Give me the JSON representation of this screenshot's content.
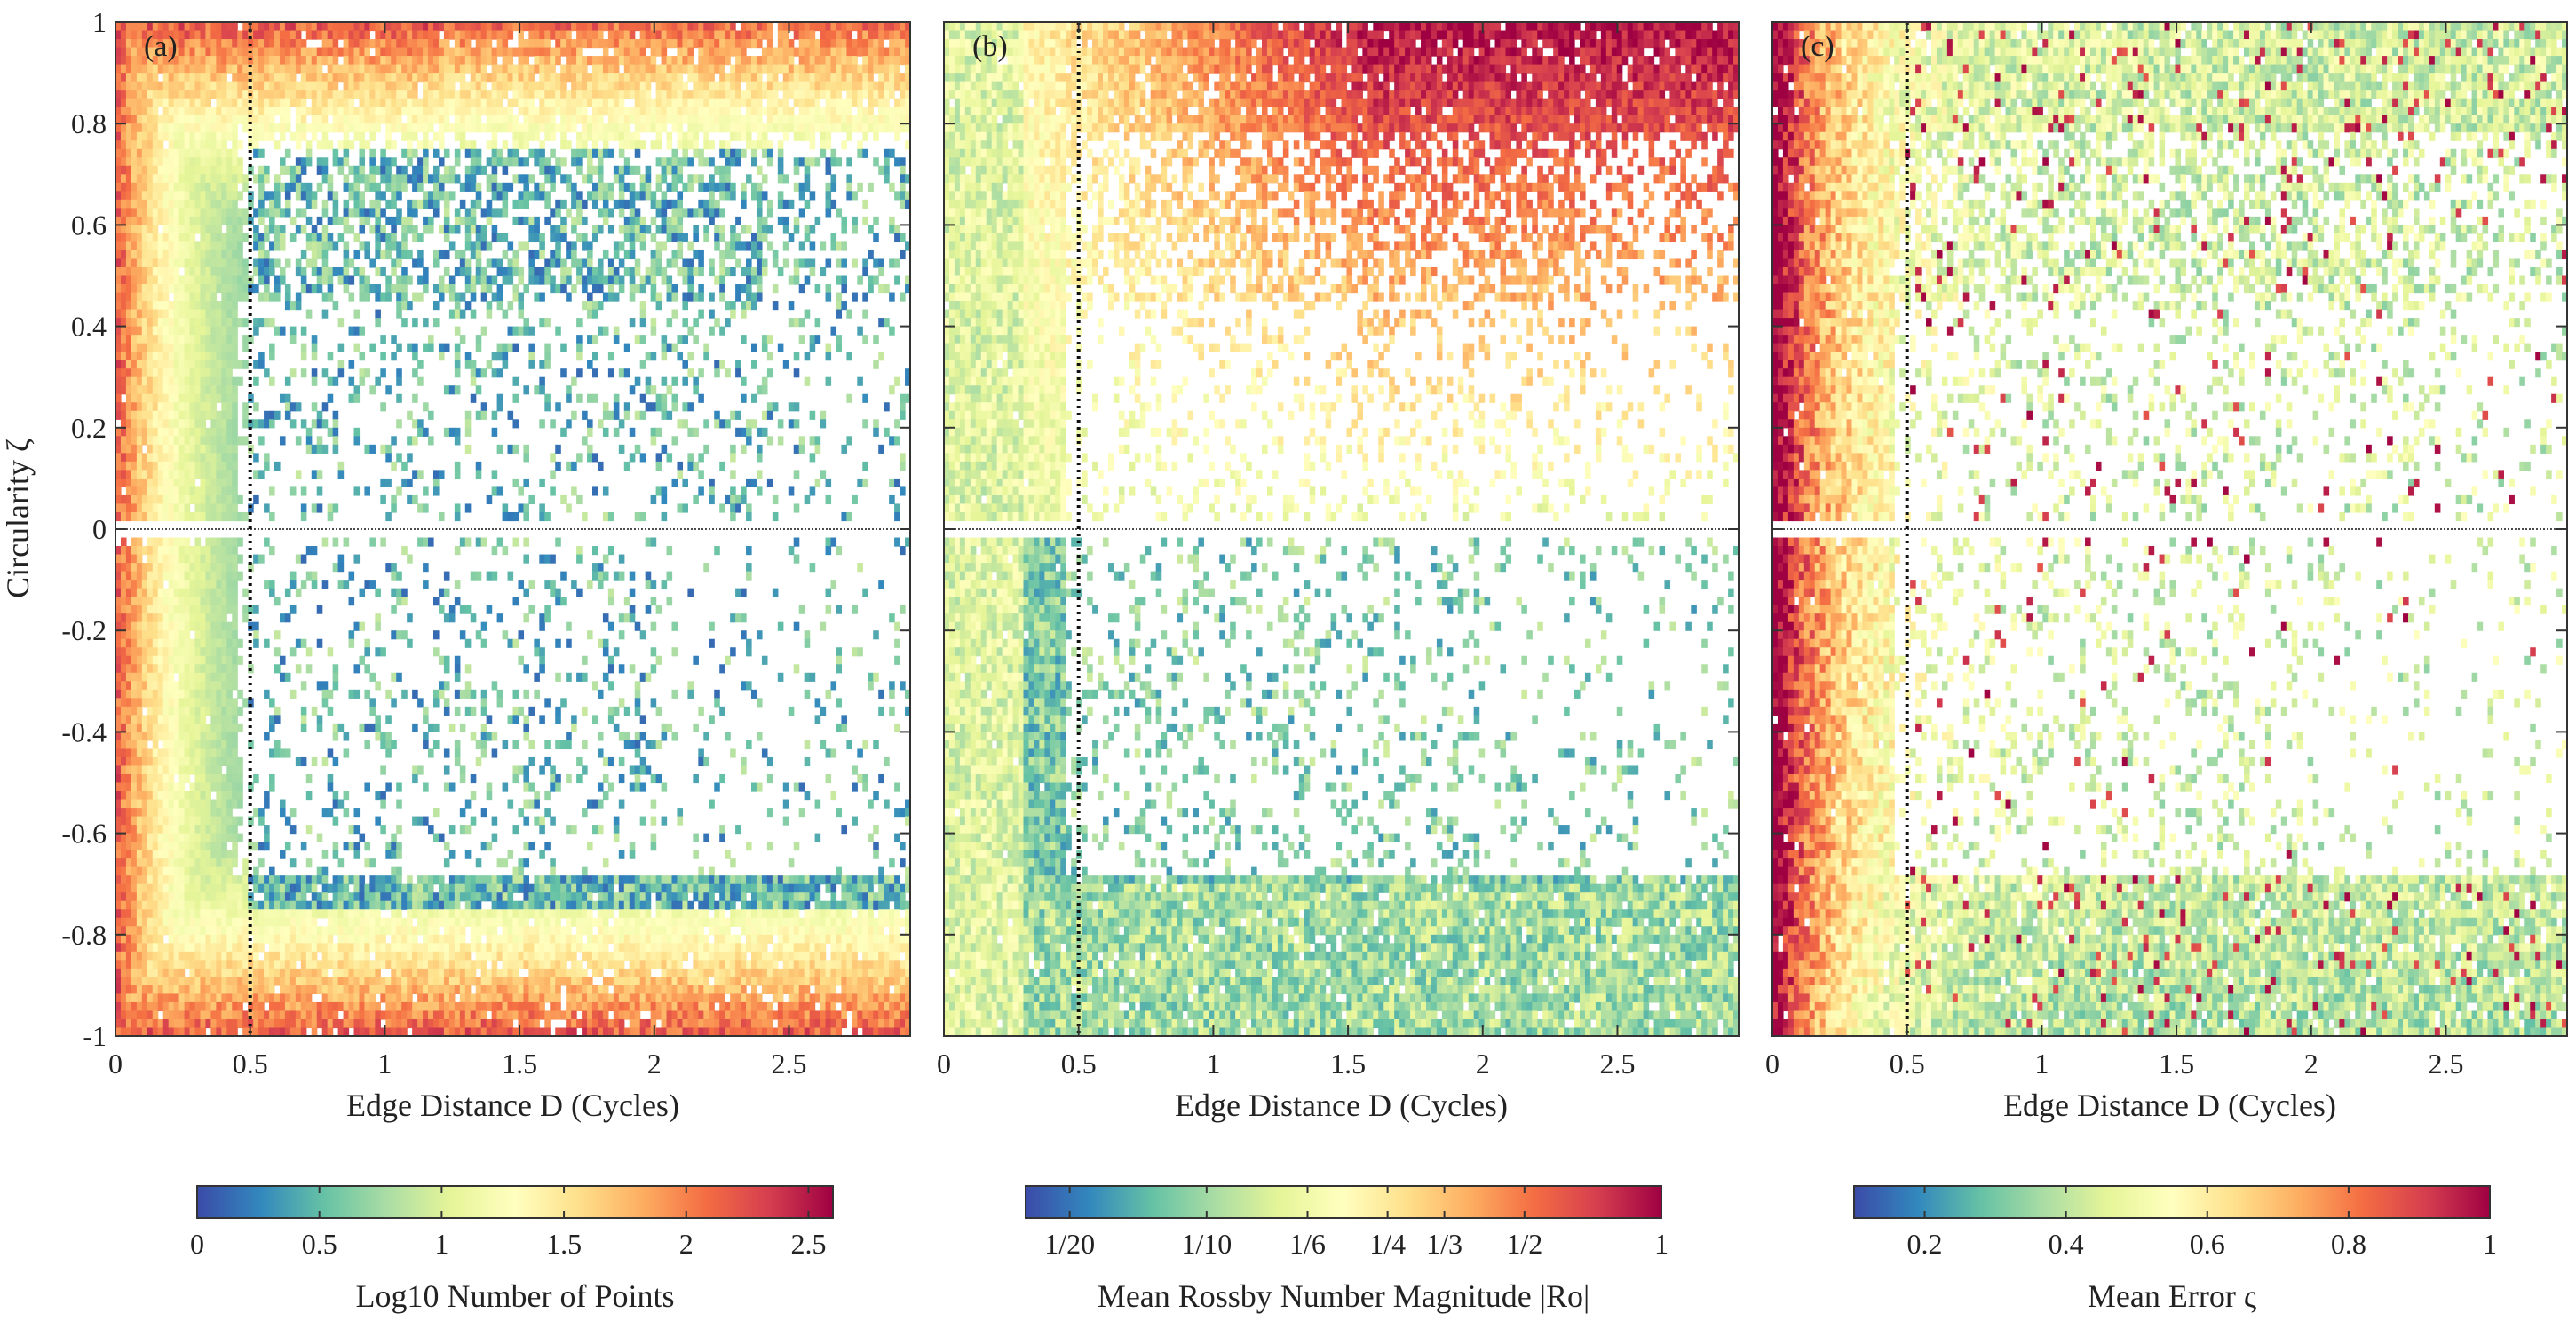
{
  "figure": {
    "ylabel": "Circularity ζ"
  },
  "chart_data": [
    {
      "type": "heatmap",
      "panel_label": "(a)",
      "xlabel": "Edge Distance D (Cycles)",
      "ylabel": "Circularity ζ",
      "xlim": [
        0,
        2.95
      ],
      "ylim": [
        -1,
        1
      ],
      "xticks": [
        0,
        0.5,
        1,
        1.5,
        2,
        2.5
      ],
      "xtick_labels": [
        "0",
        "0.5",
        "1",
        "1.5",
        "2",
        "2.5"
      ],
      "yticks": [
        1,
        0.8,
        0.6,
        0.4,
        0.2,
        0,
        -0.2,
        -0.4,
        -0.6,
        -0.8,
        -1
      ],
      "ytick_labels": [
        "1",
        "0.8",
        "0.6",
        "0.4",
        "0.2",
        "0",
        "-0.2",
        "-0.4",
        "-0.6",
        "-0.8",
        "-1"
      ],
      "reference_lines": {
        "vertical_dotted_x": 0.5,
        "horizontal_dotted_y": 0
      },
      "colorbar": {
        "label": "Log10 Number of Points",
        "range": [
          0,
          2.6
        ],
        "ticks": [
          0,
          0.5,
          1,
          1.5,
          2,
          2.5
        ],
        "tick_labels": [
          "0",
          "0.5",
          "1",
          "1.5",
          "2",
          "2.5"
        ],
        "scale": "linear"
      },
      "colormap": "spectral-reversed",
      "pattern": "counts highest near |ζ|=1 and small D; sparse scattered trajectories at larger D"
    },
    {
      "type": "heatmap",
      "panel_label": "(b)",
      "xlabel": "Edge Distance D (Cycles)",
      "ylabel": "",
      "xlim": [
        0,
        2.95
      ],
      "ylim": [
        -1,
        1
      ],
      "xticks": [
        0,
        0.5,
        1,
        1.5,
        2,
        2.5
      ],
      "xtick_labels": [
        "0",
        "0.5",
        "1",
        "1.5",
        "2",
        "2.5"
      ],
      "reference_lines": {
        "vertical_dotted_x": 0.5,
        "horizontal_dotted_y": 0
      },
      "colorbar": {
        "label": "Mean Rossby Number Magnitude |Ro|",
        "range": [
          0.04,
          1
        ],
        "ticks": [
          0.05,
          0.1,
          0.1667,
          0.25,
          0.3333,
          0.5,
          1
        ],
        "tick_labels": [
          "1/20",
          "1/10",
          "1/6",
          "1/4",
          "1/3",
          "1/2",
          "1"
        ],
        "scale": "log"
      },
      "colormap": "spectral-reversed",
      "pattern": "high |Ro| for positive circularity at larger D; low |Ro| for negative circularity"
    },
    {
      "type": "heatmap",
      "panel_label": "(c)",
      "xlabel": "Edge Distance D (Cycles)",
      "ylabel": "",
      "xlim": [
        0,
        2.95
      ],
      "ylim": [
        -1,
        1
      ],
      "xticks": [
        0,
        0.5,
        1,
        1.5,
        2,
        2.5
      ],
      "xtick_labels": [
        "0",
        "0.5",
        "1",
        "1.5",
        "2",
        "2.5"
      ],
      "reference_lines": {
        "vertical_dotted_x": 0.5,
        "horizontal_dotted_y": 0
      },
      "colorbar": {
        "label": "Mean Error ς",
        "range": [
          0.1,
          1
        ],
        "ticks": [
          0.2,
          0.4,
          0.6,
          0.8,
          1
        ],
        "tick_labels": [
          "0.2",
          "0.4",
          "0.6",
          "0.8",
          "1"
        ],
        "scale": "linear"
      },
      "colormap": "spectral-reversed",
      "pattern": "high error near D=0; lower error at larger D, especially near ζ=-1"
    }
  ]
}
